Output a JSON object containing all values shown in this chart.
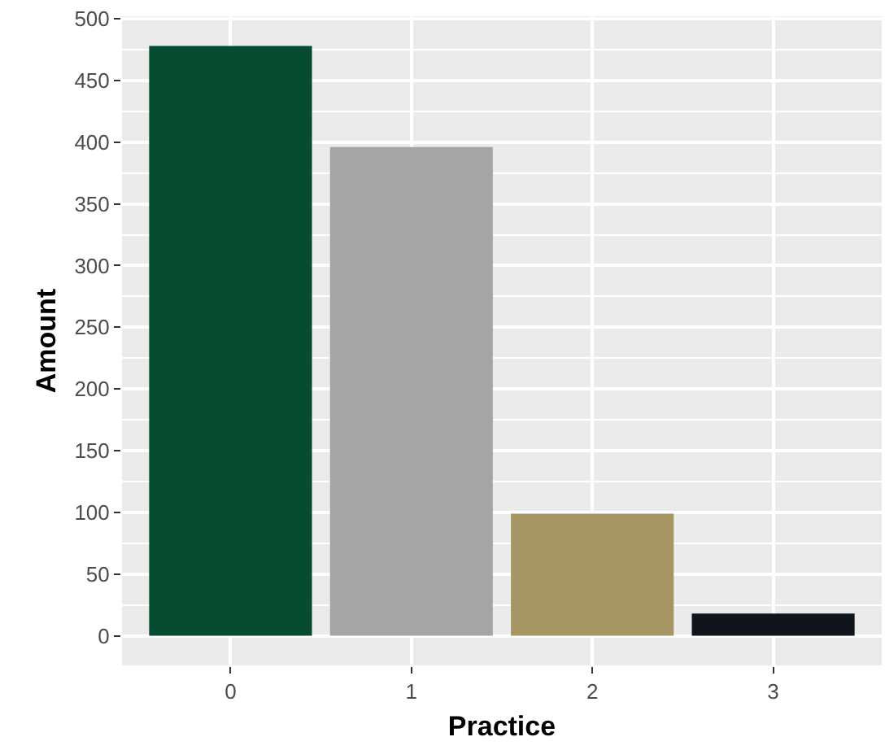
{
  "chart_data": {
    "type": "bar",
    "xlabel": "Practice",
    "ylabel": "Amount",
    "categories": [
      "0",
      "1",
      "2",
      "3"
    ],
    "values": [
      478,
      396,
      99,
      18
    ],
    "colors": [
      "#074b30",
      "#a5a5a5",
      "#a59663",
      "#10141d"
    ],
    "ylim": [
      -24,
      502
    ],
    "yticks": [
      0,
      50,
      100,
      150,
      200,
      250,
      300,
      350,
      400,
      450,
      500
    ],
    "grid": true
  }
}
